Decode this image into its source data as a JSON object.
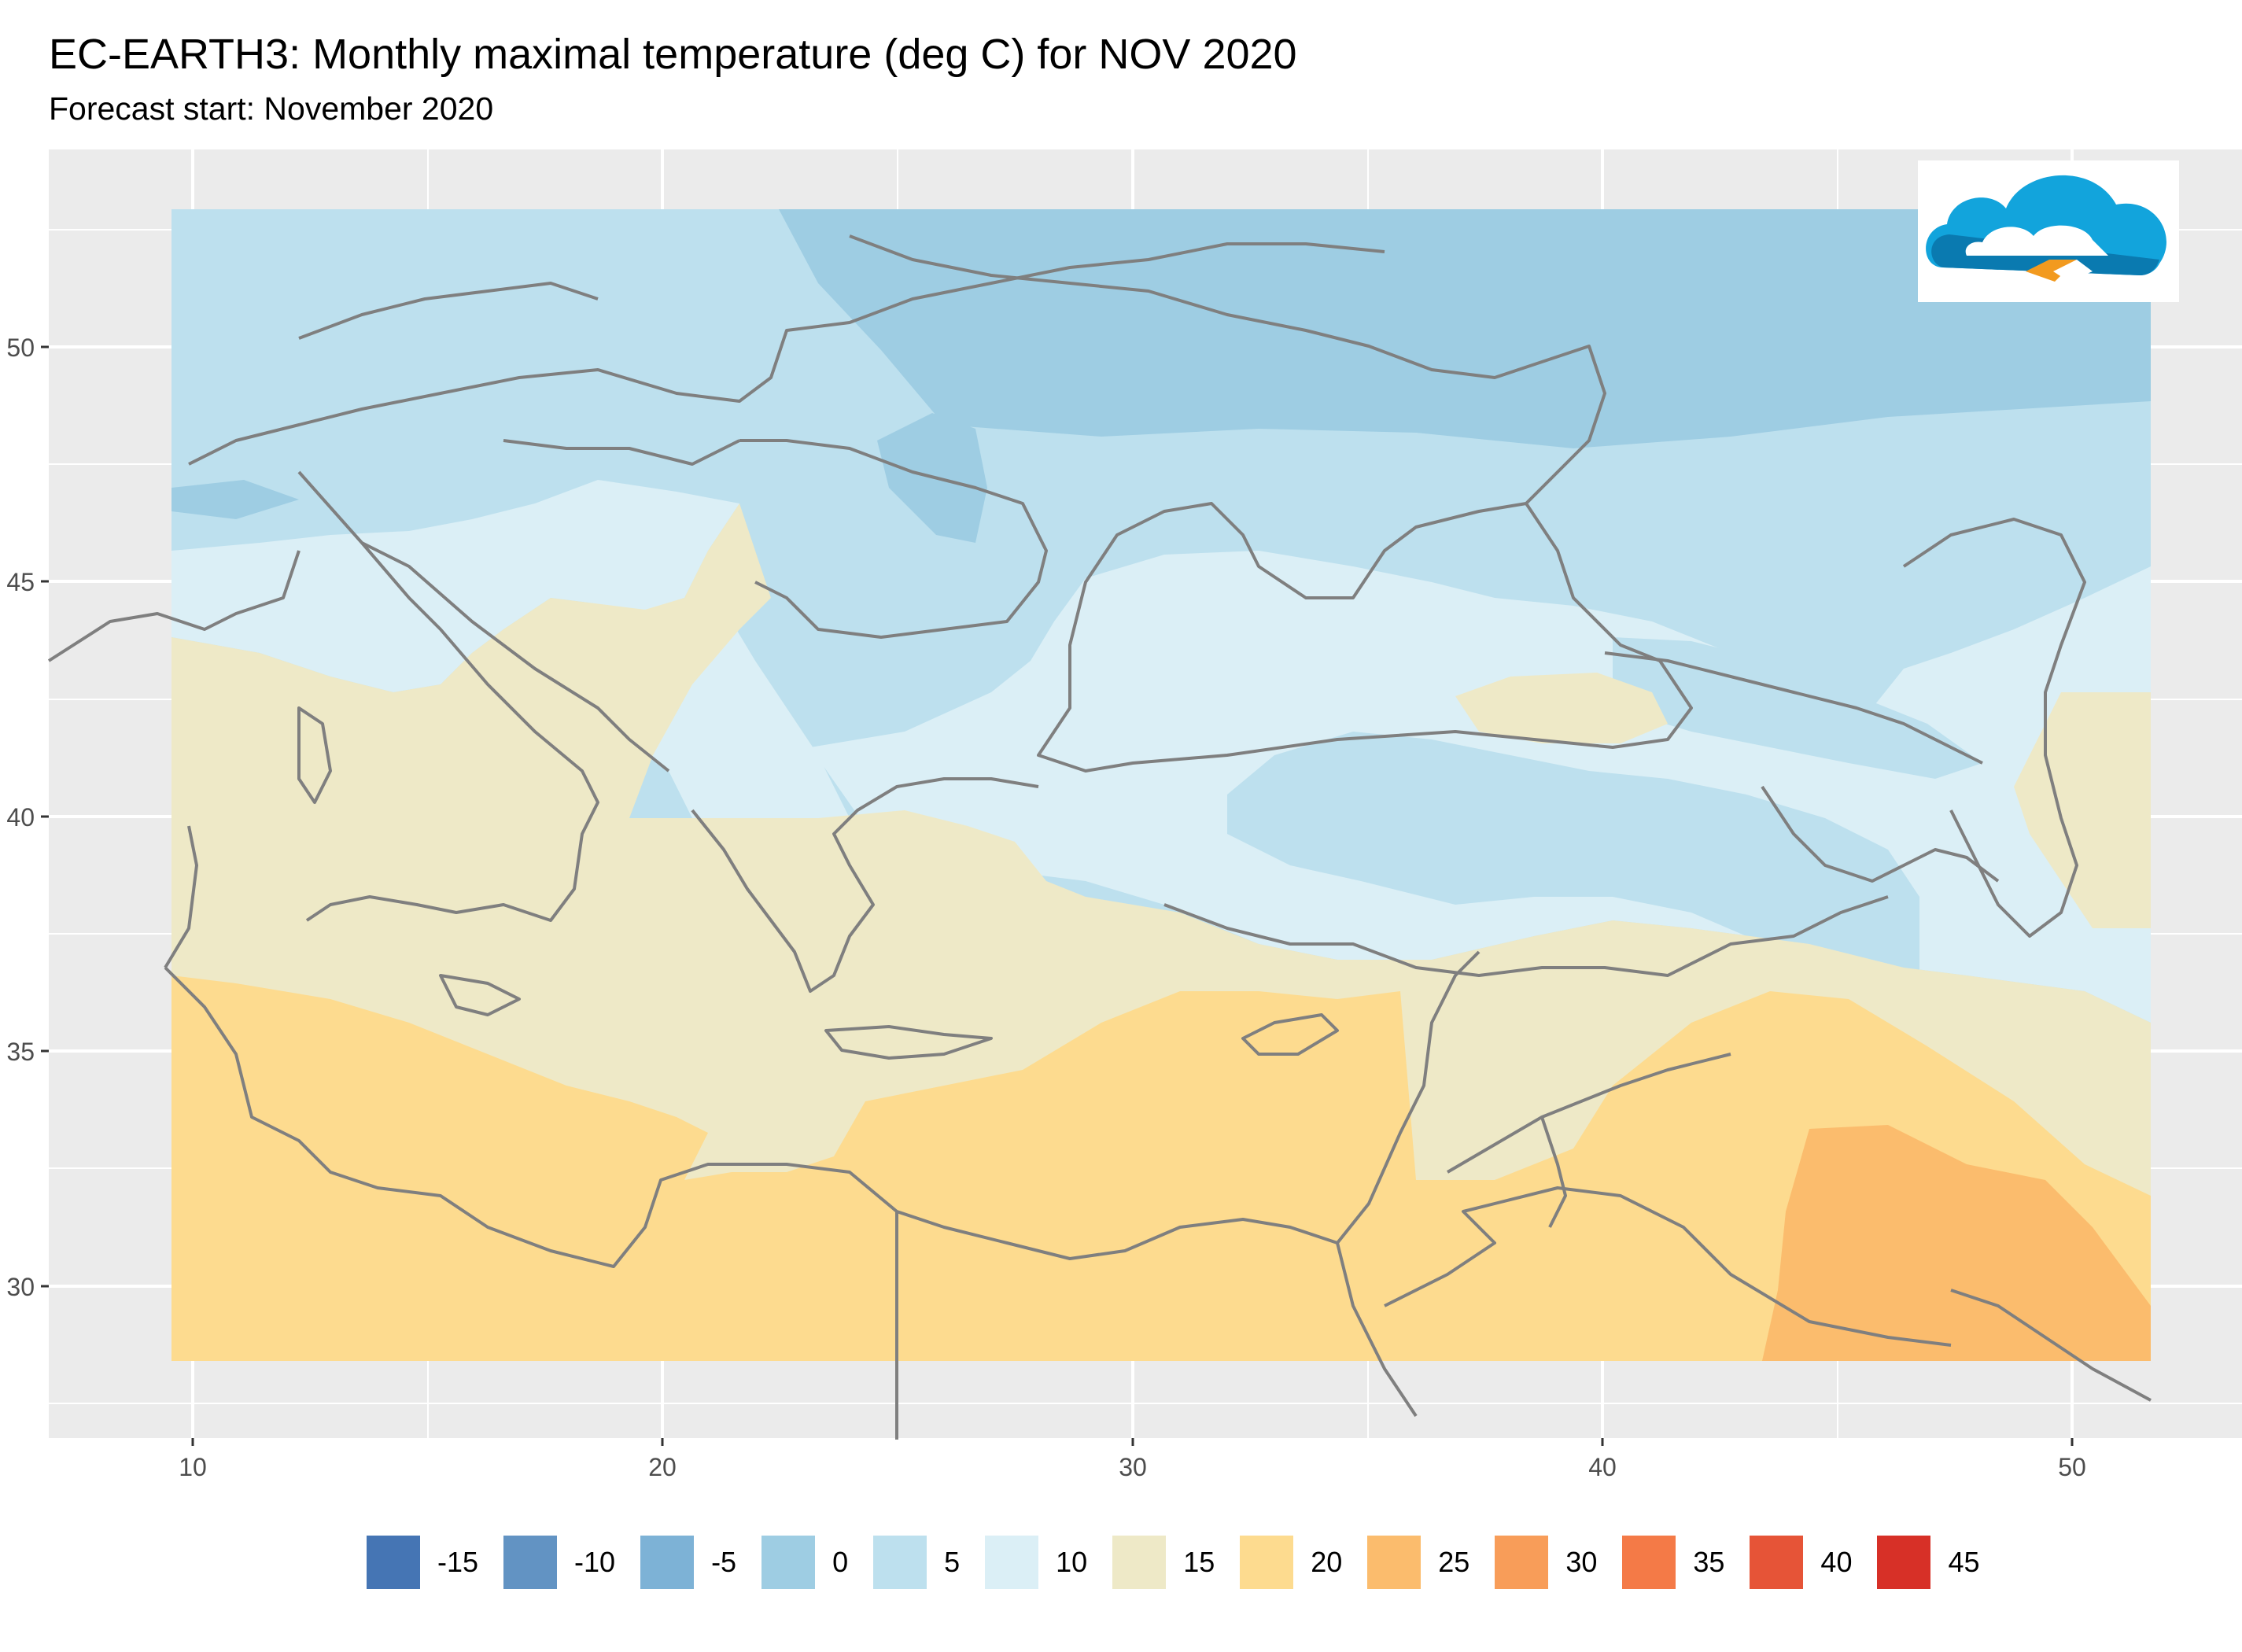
{
  "title": "EC-EARTH3: Monthly maximal temperature (deg C) for NOV 2020",
  "subtitle": "Forecast start: November 2020",
  "x_axis": {
    "ticks": [
      "10",
      "20",
      "30",
      "40",
      "50"
    ]
  },
  "y_axis": {
    "ticks": [
      "50",
      "45",
      "40",
      "35",
      "30"
    ]
  },
  "legend": [
    {
      "label": "-15",
      "color": "#4575b4"
    },
    {
      "label": "-10",
      "color": "#6293c3"
    },
    {
      "label": "-5",
      "color": "#7db2d6"
    },
    {
      "label": "0",
      "color": "#9ecde3"
    },
    {
      "label": "5",
      "color": "#bde0ee"
    },
    {
      "label": "10",
      "color": "#dbeff6"
    },
    {
      "label": "15",
      "color": "#eee9c7"
    },
    {
      "label": "20",
      "color": "#fddb8f"
    },
    {
      "label": "25",
      "color": "#fbbc6d"
    },
    {
      "label": "30",
      "color": "#f89d59"
    },
    {
      "label": "35",
      "color": "#f47a47"
    },
    {
      "label": "40",
      "color": "#e65437"
    },
    {
      "label": "45",
      "color": "#d73027"
    }
  ],
  "logo": {
    "icon": "cloud-logo-icon"
  },
  "colors": {
    "panel_background": "#ebebeb",
    "gridline": "#ffffff",
    "coastline": "#7f7f7f"
  }
}
